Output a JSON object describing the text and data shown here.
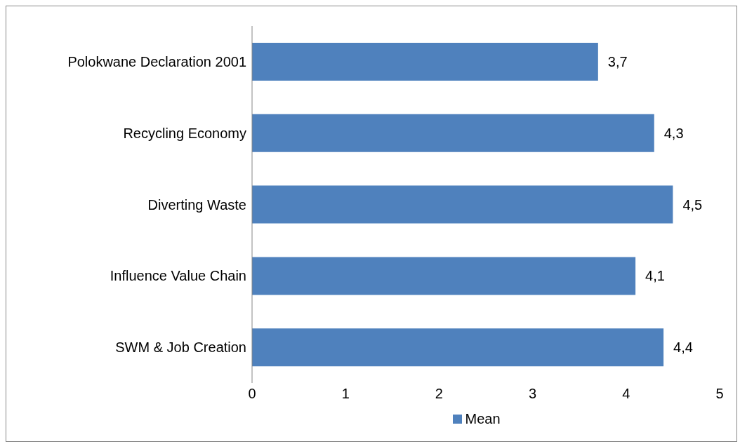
{
  "chart_data": {
    "type": "bar",
    "orientation": "horizontal",
    "categories": [
      "Polokwane Declaration 2001",
      "Recycling Economy",
      "Diverting Waste",
      "Influence Value Chain",
      "SWM & Job Creation"
    ],
    "series": [
      {
        "name": "Mean",
        "color": "#4f81bd",
        "values": [
          3.7,
          4.3,
          4.5,
          4.1,
          4.4
        ],
        "value_labels": [
          "3,7",
          "4,3",
          "4,5",
          "4,1",
          "4,4"
        ]
      }
    ],
    "xlim": [
      0,
      5
    ],
    "xticks": [
      0,
      1,
      2,
      3,
      4,
      5
    ],
    "grid": false,
    "legend": "bottom"
  }
}
